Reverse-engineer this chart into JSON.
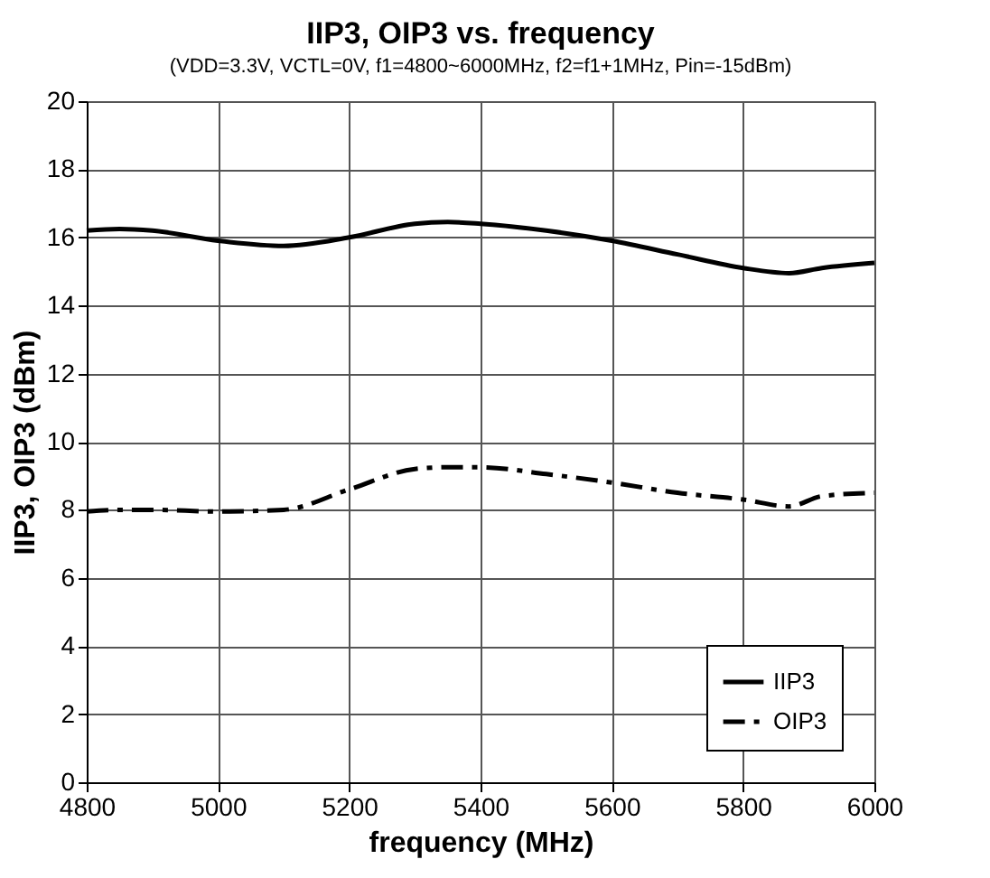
{
  "chart_data": {
    "type": "line",
    "title": "IIP3, OIP3 vs. frequency",
    "subtitle": "(VDD=3.3V, VCTL=0V, f1=4800~6000MHz,  f2=f1+1MHz, Pin=-15dBm)",
    "xlabel": "frequency (MHz)",
    "ylabel": "IIP3, OIP3 (dBm)",
    "x": [
      4800,
      4850,
      4900,
      5000,
      5100,
      5200,
      5300,
      5350,
      5400,
      5500,
      5600,
      5700,
      5800,
      5870,
      5920,
      6000
    ],
    "series": [
      {
        "name": "IIP3",
        "color": "#000000",
        "line_style": "solid",
        "values": [
          16.2,
          16.25,
          16.2,
          15.9,
          15.75,
          16.0,
          16.4,
          16.45,
          16.4,
          16.2,
          15.9,
          15.5,
          15.1,
          14.95,
          15.1,
          15.25
        ]
      },
      {
        "name": "OIP3",
        "color": "#000000",
        "line_style": "dashed",
        "values": [
          7.95,
          8.0,
          8.0,
          7.95,
          8.0,
          8.6,
          9.2,
          9.25,
          9.25,
          9.05,
          8.8,
          8.5,
          8.3,
          8.1,
          8.4,
          8.5
        ]
      }
    ],
    "xlim": [
      4800,
      6000
    ],
    "xticks": [
      4800,
      5000,
      5200,
      5400,
      5600,
      5800,
      6000
    ],
    "ylim": [
      0,
      20
    ],
    "yticks": [
      0,
      2,
      4,
      6,
      8,
      10,
      12,
      14,
      16,
      18,
      20
    ],
    "grid": true,
    "legend": "bottom right",
    "marker": "none"
  }
}
